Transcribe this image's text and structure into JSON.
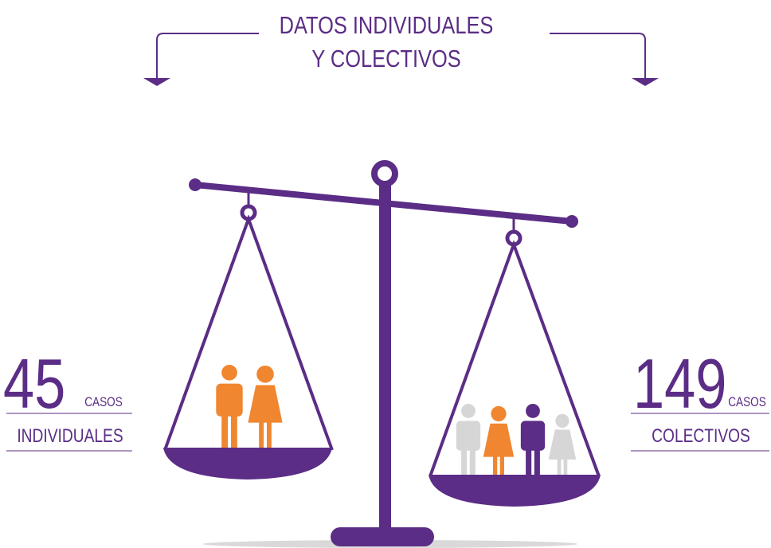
{
  "header": {
    "title_line1": "DATOS INDIVIDUALES",
    "title_line2": "Y COLECTIVOS"
  },
  "left": {
    "number": "45",
    "unit": "CASOS",
    "label": "INDIVIDUALES"
  },
  "right": {
    "number": "149",
    "unit": "CASOS",
    "label": "COLECTIVOS"
  }
}
